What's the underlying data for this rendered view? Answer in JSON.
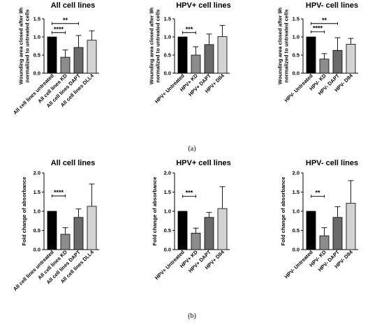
{
  "panel_labels": [
    "(a)",
    "(b)"
  ],
  "chart_data": [
    {
      "type": "bar",
      "title": "All cell lines",
      "ylabel": "Wounding area closed after 9h normalized to untreated cells",
      "ylim": [
        0,
        1.5
      ],
      "yticks": [
        "0.0",
        "0.5",
        "1.0",
        "1.5"
      ],
      "categories": [
        "All cell lines untreated",
        "All cell lines KD",
        "All cell lines DAPT",
        "All cell lines DLL4"
      ],
      "values": [
        1.0,
        0.44,
        0.71,
        0.91
      ],
      "errors": [
        0,
        0.2,
        0.33,
        0.26
      ],
      "bar_colors": [
        "#000000",
        "#8c8c8c",
        "#6b6b6b",
        "#d3d3d3"
      ],
      "significance": [
        {
          "from": 0,
          "to": 1,
          "label": "****",
          "y": 1.12
        },
        {
          "from": 0,
          "to": 2,
          "label": "**",
          "y": 1.37
        }
      ]
    },
    {
      "type": "bar",
      "title": "HPV+ cell lines",
      "ylabel": "Wounding area closed after 9h normalized to untreated cells",
      "ylim": [
        0,
        1.5
      ],
      "yticks": [
        "0.0",
        "0.5",
        "1.0",
        "1.5"
      ],
      "categories": [
        "HPV+ Untreated",
        "HPV+ KD",
        "HPV+ DAPT",
        "HPV+ Dll4"
      ],
      "values": [
        1.0,
        0.5,
        0.79,
        1.01
      ],
      "errors": [
        0,
        0.23,
        0.29,
        0.31
      ],
      "bar_colors": [
        "#000000",
        "#8c8c8c",
        "#6b6b6b",
        "#d3d3d3"
      ],
      "significance": [
        {
          "from": 0,
          "to": 1,
          "label": "***",
          "y": 1.12
        }
      ]
    },
    {
      "type": "bar",
      "title": "HPV- cell lines",
      "ylabel": "Wounding area closed after 9h normalized to untreated cells",
      "ylim": [
        0,
        1.5
      ],
      "yticks": [
        "0.0",
        "0.5",
        "1.0",
        "1.5"
      ],
      "categories": [
        "HPV- Untreated",
        "HPV- KD",
        "HPV- DAPT",
        "HPV- Dll4"
      ],
      "values": [
        1.0,
        0.39,
        0.63,
        0.8
      ],
      "errors": [
        0,
        0.15,
        0.35,
        0.16
      ],
      "bar_colors": [
        "#000000",
        "#8c8c8c",
        "#6b6b6b",
        "#d3d3d3"
      ],
      "significance": [
        {
          "from": 0,
          "to": 1,
          "label": "****",
          "y": 1.14
        },
        {
          "from": 0,
          "to": 2,
          "label": "**",
          "y": 1.37
        }
      ]
    },
    {
      "type": "bar",
      "title": "All cell lines",
      "ylabel": "Fold change of absorbance",
      "ylim": [
        0,
        2.0
      ],
      "yticks": [
        "0.0",
        "0.5",
        "1.0",
        "1.5",
        "2.0"
      ],
      "categories": [
        "All cell lines untreated",
        "All cell lines KD",
        "All cell lines DAPT",
        "All cell lines DLL4"
      ],
      "values": [
        1.0,
        0.4,
        0.84,
        1.13
      ],
      "errors": [
        0,
        0.17,
        0.22,
        0.58
      ],
      "bar_colors": [
        "#000000",
        "#8c8c8c",
        "#6b6b6b",
        "#d3d3d3"
      ],
      "significance": [
        {
          "from": 0,
          "to": 1,
          "label": "****",
          "y": 1.4
        }
      ]
    },
    {
      "type": "bar",
      "title": "HPV+ cell lines",
      "ylabel": "Fold change of absorbance",
      "ylim": [
        0,
        2.0
      ],
      "yticks": [
        "0.0",
        "0.5",
        "1.0",
        "1.5",
        "2.0"
      ],
      "categories": [
        "HPV+ Untreated",
        "HPV+ KD",
        "HPV+ DAPT",
        "HPV+ Dll4"
      ],
      "values": [
        1.0,
        0.43,
        0.84,
        1.07
      ],
      "errors": [
        0,
        0.13,
        0.13,
        0.57
      ],
      "bar_colors": [
        "#000000",
        "#8c8c8c",
        "#6b6b6b",
        "#d3d3d3"
      ],
      "significance": [
        {
          "from": 0,
          "to": 1,
          "label": "***",
          "y": 1.39
        }
      ]
    },
    {
      "type": "bar",
      "title": "HPV- cell lines",
      "ylabel": "Fold change of absorbance",
      "ylim": [
        0,
        2.0
      ],
      "yticks": [
        "0.0",
        "0.5",
        "1.0",
        "1.5",
        "2.0"
      ],
      "categories": [
        "HPV- Untreated",
        "HPV- KD",
        "HPV- DAPT",
        "HPV- Dll4"
      ],
      "values": [
        1.0,
        0.36,
        0.84,
        1.21
      ],
      "errors": [
        0,
        0.21,
        0.28,
        0.59
      ],
      "bar_colors": [
        "#000000",
        "#8c8c8c",
        "#6b6b6b",
        "#d3d3d3"
      ],
      "significance": [
        {
          "from": 0,
          "to": 1,
          "label": "**",
          "y": 1.39
        }
      ]
    }
  ]
}
